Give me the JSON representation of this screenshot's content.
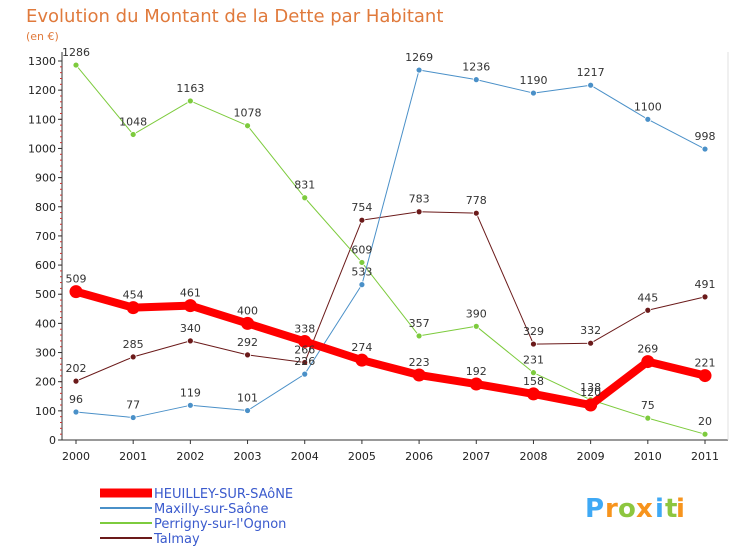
{
  "chart_data": {
    "type": "line",
    "title": "Evolution du Montant de la Dette par Habitant",
    "subtitle": "(en €)",
    "xlabel": "",
    "ylabel": "",
    "categories": [
      "2000",
      "2001",
      "2002",
      "2003",
      "2004",
      "2005",
      "2006",
      "2007",
      "2008",
      "2009",
      "2010",
      "2011"
    ],
    "ylim": [
      0,
      1300
    ],
    "yticks": [
      0,
      100,
      200,
      300,
      400,
      500,
      600,
      700,
      800,
      900,
      1000,
      1100,
      1200,
      1300
    ],
    "grid": false,
    "legend_position": "bottom-left",
    "series": [
      {
        "name": "HEUILLEY-SUR-SAôNE",
        "color": "#ff0000",
        "values": [
          509,
          454,
          461,
          400,
          338,
          274,
          223,
          192,
          158,
          120,
          269,
          221
        ]
      },
      {
        "name": "Maxilly-sur-Saône",
        "color": "#4a90c8",
        "values": [
          96,
          77,
          119,
          101,
          226,
          533,
          1269,
          1236,
          1190,
          1217,
          1100,
          998
        ]
      },
      {
        "name": "Perrigny-sur-l'Ognon",
        "color": "#7dcb3d",
        "values": [
          1286,
          1048,
          1163,
          1078,
          831,
          609,
          357,
          390,
          231,
          138,
          75,
          20
        ]
      },
      {
        "name": "Talmay",
        "color": "#6b1a1a",
        "values": [
          202,
          285,
          340,
          292,
          266,
          754,
          783,
          778,
          329,
          332,
          445,
          491
        ]
      }
    ]
  },
  "logo": {
    "letters": [
      "P",
      "r",
      "o",
      "x",
      "i",
      "t",
      "i"
    ],
    "colors": [
      "#3fa9f5",
      "#f7941d",
      "#8dc63f",
      "#f7941d",
      "#3fa9f5",
      "#8dc63f",
      "#f7941d"
    ]
  }
}
